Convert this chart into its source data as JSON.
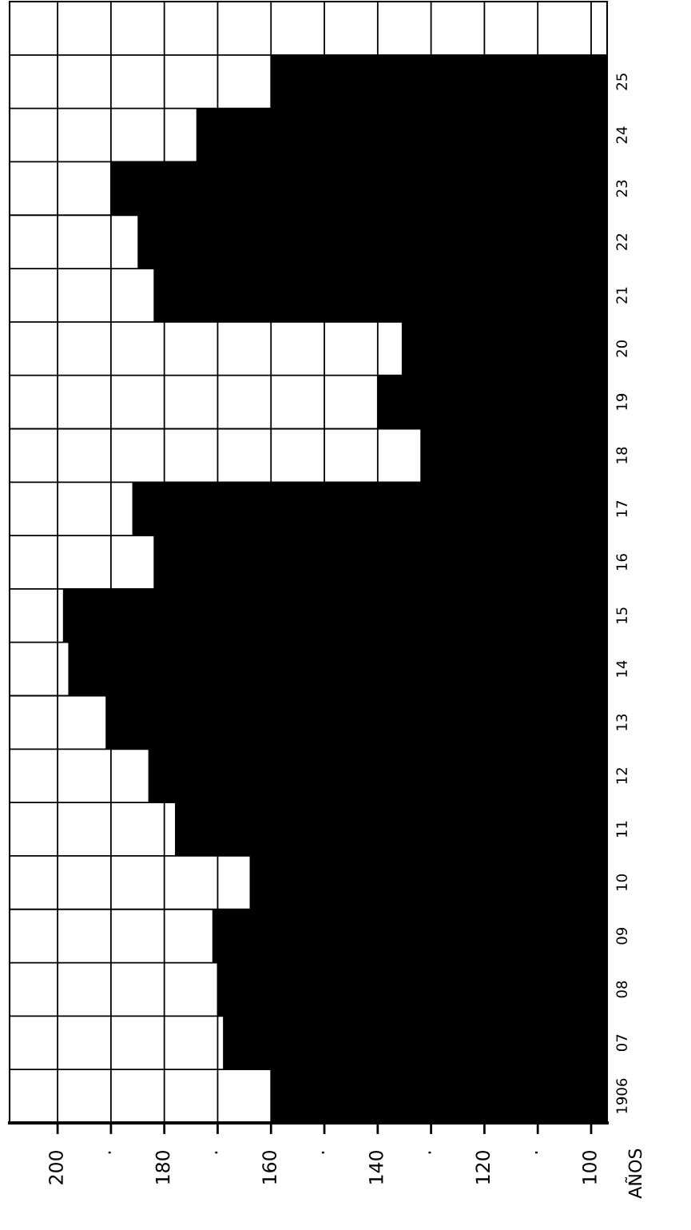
{
  "chart_data": {
    "type": "bar",
    "orientation": "horizontal",
    "ylabel": "AÑOS",
    "categories": [
      "25",
      "24",
      "23",
      "22",
      "21",
      "20",
      "19",
      "18",
      "17",
      "16",
      "15",
      "14",
      "13",
      "12",
      "11",
      "10",
      "09",
      "08",
      "07",
      "1906"
    ],
    "values": [
      160,
      174,
      190,
      185,
      182,
      135.5,
      140,
      132,
      186,
      182,
      199,
      198,
      191,
      183,
      178,
      164,
      171,
      170,
      169,
      160
    ],
    "color": "#000000",
    "xlim": [
      209,
      97
    ],
    "xticks": [
      200,
      {
        "value": 190,
        "label": "·"
      },
      180,
      {
        "value": 170,
        "label": "·"
      },
      160,
      {
        "value": 150,
        "label": "·"
      },
      140,
      {
        "value": 130,
        "label": "·"
      },
      120,
      {
        "value": 110,
        "label": "·"
      },
      100
    ],
    "grid": true
  }
}
